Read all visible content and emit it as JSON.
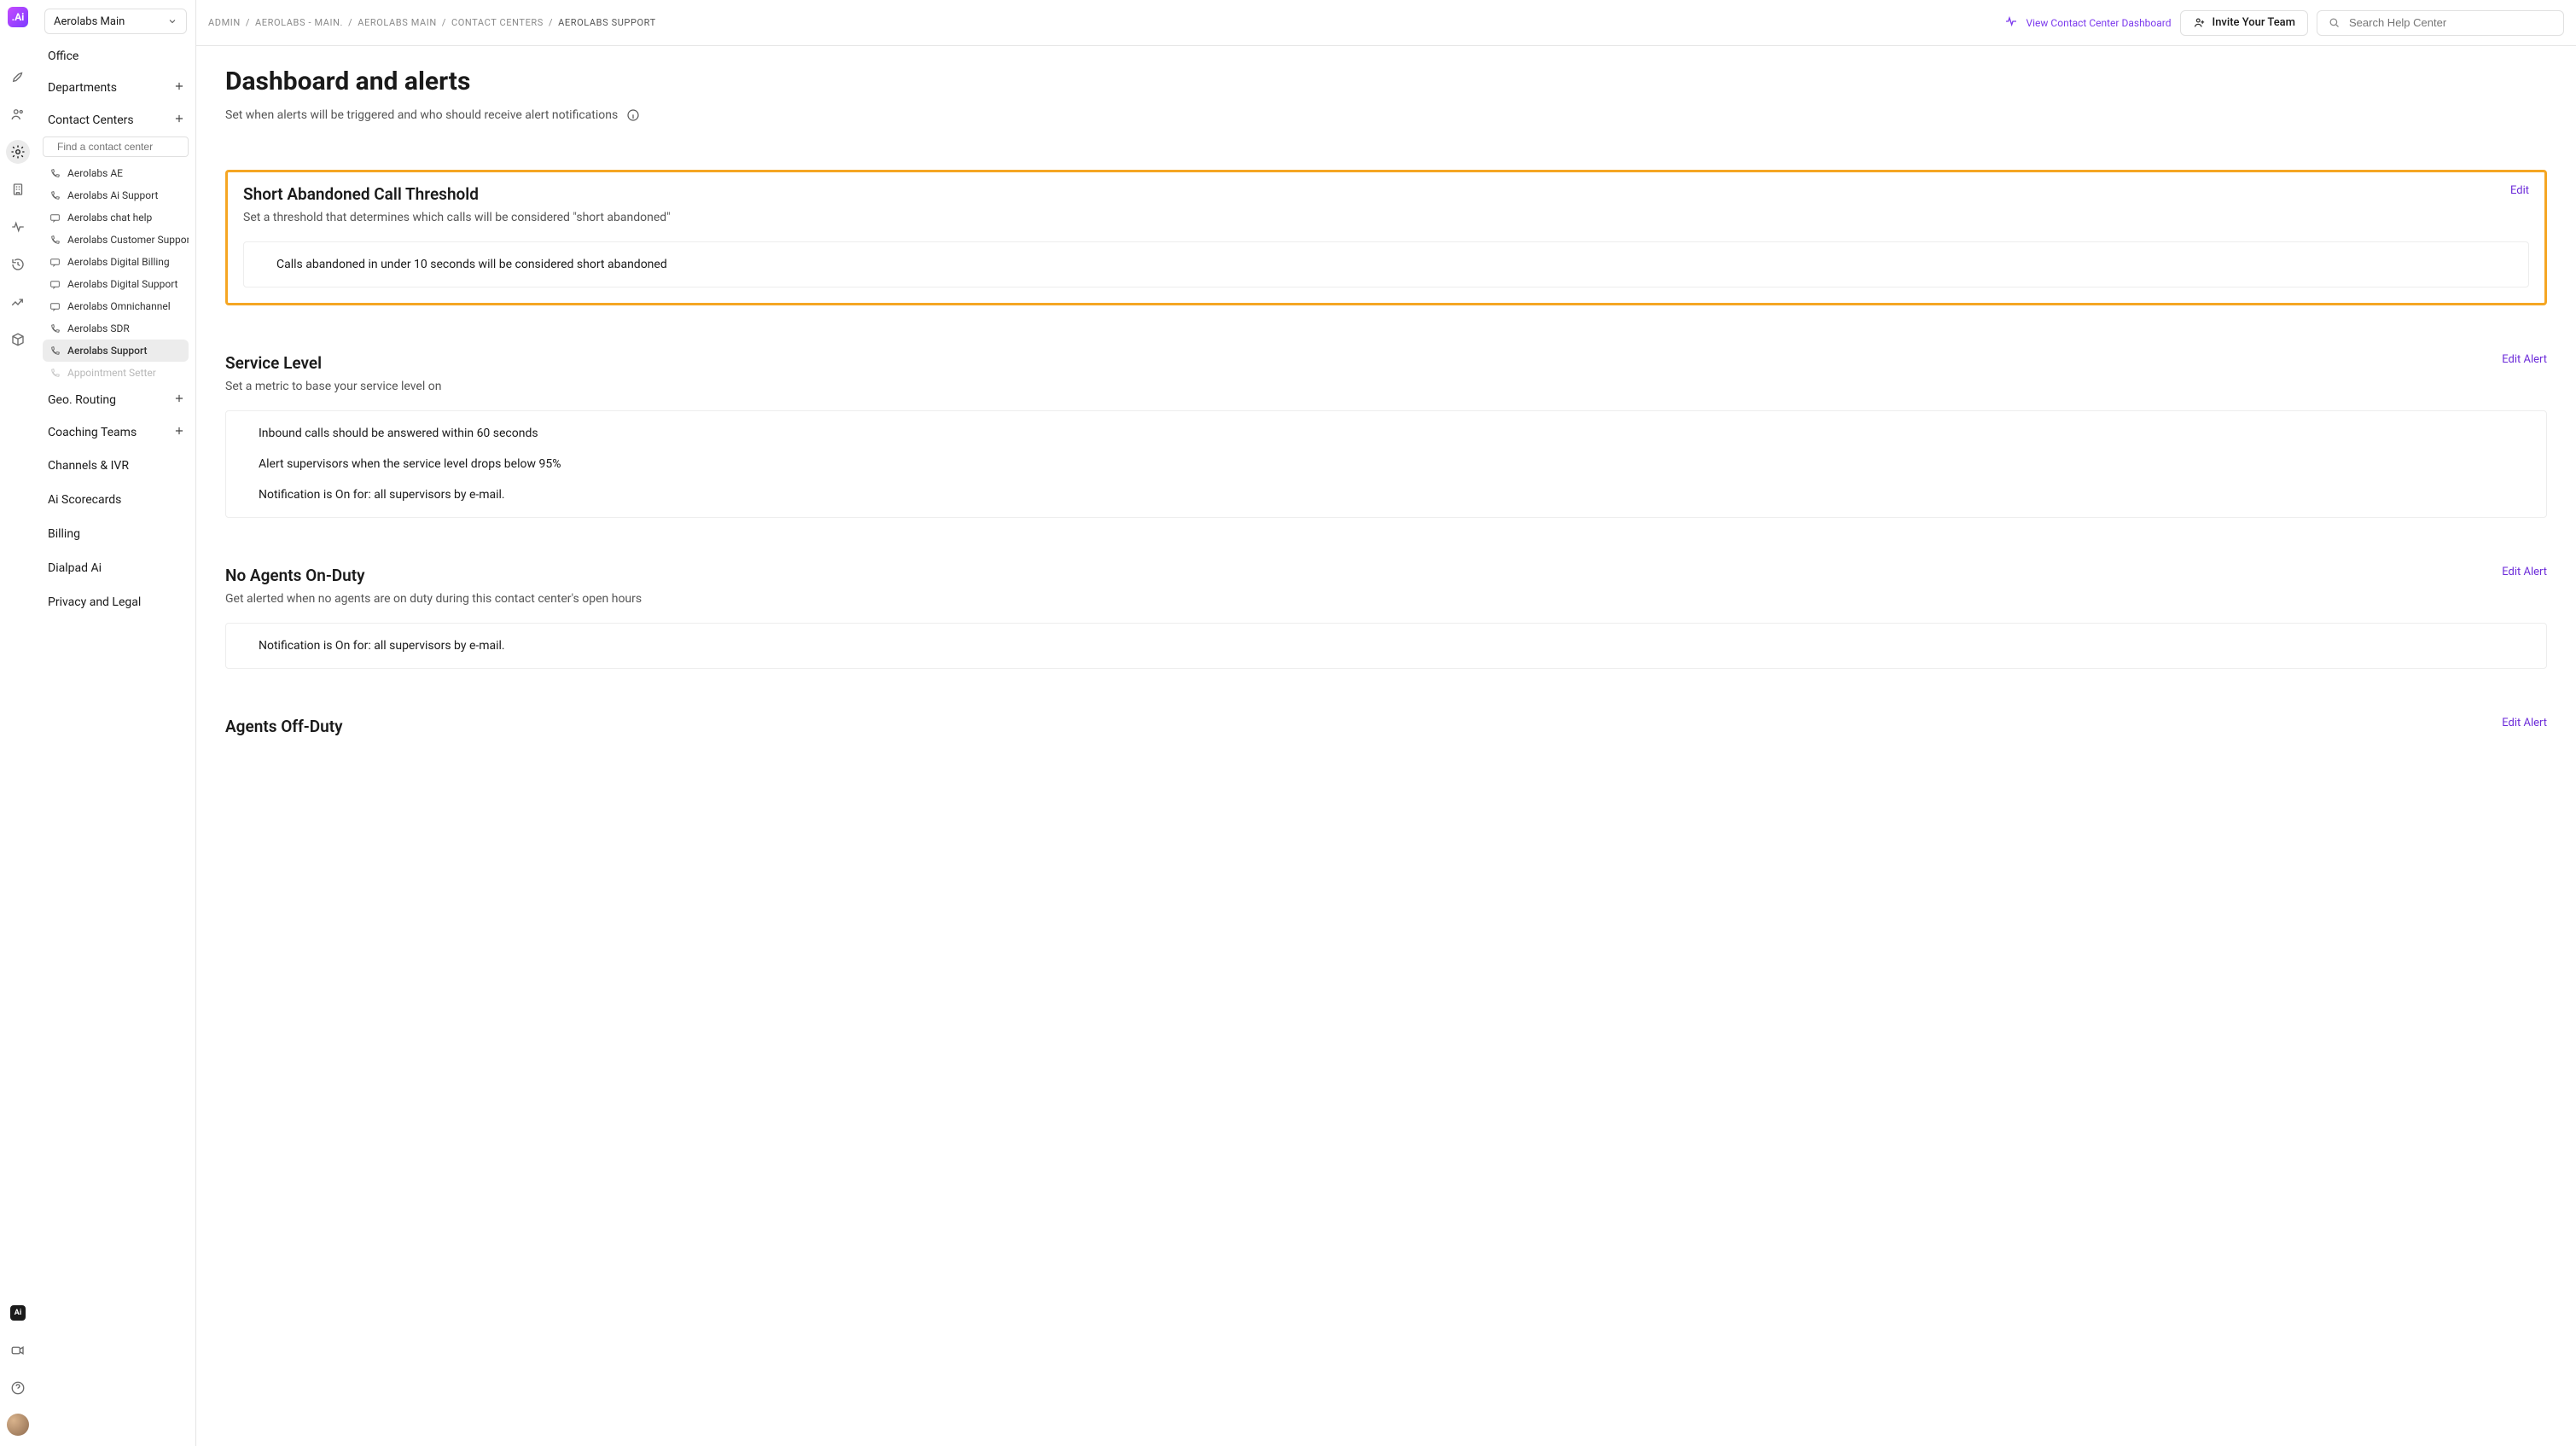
{
  "workspace": {
    "selected": "Aerolabs Main"
  },
  "icon_rail": {
    "logo_label": ".Ai",
    "items": [
      {
        "name": "rocket"
      },
      {
        "name": "contacts"
      },
      {
        "name": "settings",
        "active": true
      },
      {
        "name": "building"
      },
      {
        "name": "activity"
      },
      {
        "name": "history"
      },
      {
        "name": "trend"
      },
      {
        "name": "cube"
      }
    ],
    "bottom_items": [
      {
        "name": "ai-app"
      },
      {
        "name": "video"
      },
      {
        "name": "help"
      }
    ]
  },
  "sidebar": {
    "sections": [
      {
        "label": "Office",
        "has_plus": false
      },
      {
        "label": "Departments",
        "has_plus": true
      },
      {
        "label": "Contact Centers",
        "has_plus": true,
        "is_cc": true
      },
      {
        "label": "Geo. Routing",
        "has_plus": true
      },
      {
        "label": "Coaching Teams",
        "has_plus": true
      },
      {
        "label": "Channels & IVR",
        "has_plus": false
      },
      {
        "label": "Ai Scorecards",
        "has_plus": false
      },
      {
        "label": "Billing",
        "has_plus": false
      },
      {
        "label": "Dialpad Ai",
        "has_plus": false
      },
      {
        "label": "Privacy and Legal",
        "has_plus": false
      }
    ],
    "cc_search_placeholder": "Find a contact center",
    "contact_centers": [
      {
        "label": "Aerolabs AE",
        "kind": "phone"
      },
      {
        "label": "Aerolabs Ai Support",
        "kind": "phone"
      },
      {
        "label": "Aerolabs chat help",
        "kind": "chat"
      },
      {
        "label": "Aerolabs Customer Support",
        "kind": "phone"
      },
      {
        "label": "Aerolabs Digital Billing",
        "kind": "chat"
      },
      {
        "label": "Aerolabs Digital Support",
        "kind": "chat"
      },
      {
        "label": "Aerolabs Omnichannel",
        "kind": "chat"
      },
      {
        "label": "Aerolabs SDR",
        "kind": "phone"
      },
      {
        "label": "Aerolabs Support",
        "kind": "phone",
        "active": true
      },
      {
        "label": "Appointment Setter",
        "kind": "phone",
        "faded": true
      }
    ]
  },
  "header": {
    "breadcrumbs": [
      {
        "label": "ADMIN",
        "link": true
      },
      {
        "label": "AEROLABS - MAIN.",
        "link": true
      },
      {
        "label": "AEROLABS MAIN",
        "link": true
      },
      {
        "label": "CONTACT CENTERS",
        "link": true
      },
      {
        "label": "AEROLABS SUPPORT",
        "link": false
      }
    ],
    "dashboard_link_label": "View Contact Center Dashboard",
    "invite_label": "Invite Your Team",
    "search_placeholder": "Search Help Center"
  },
  "page": {
    "title": "Dashboard and alerts",
    "subtitle": "Set when alerts will be triggered and who should receive alert notifications"
  },
  "alerts": {
    "short_abandoned": {
      "title": "Short Abandoned Call Threshold",
      "desc": "Set a threshold that determines which calls will be considered \"short abandoned\"",
      "body_line": "Calls abandoned in under 10 seconds will be considered short abandoned",
      "edit_label": "Edit",
      "highlight_color": "#f5a623"
    },
    "service_level": {
      "title": "Service Level",
      "desc": "Set a metric to base your service level on",
      "lines": [
        "Inbound calls should be answered within 60 seconds",
        "Alert supervisors when the service level drops below 95%",
        "Notification is On for: all supervisors by e-mail."
      ],
      "edit_label": "Edit Alert"
    },
    "no_agents": {
      "title": "No Agents On-Duty",
      "desc": "Get alerted when no agents are on duty during this contact center's open hours",
      "lines": [
        "Notification is On for: all supervisors by e-mail."
      ],
      "edit_label": "Edit Alert"
    },
    "agents_off": {
      "title": "Agents Off-Duty",
      "edit_label": "Edit Alert"
    }
  },
  "theme": {
    "accent": "#7c3aed",
    "link": "#6c2bd9",
    "border": "#e5e5e5",
    "text_muted": "#8a8a8a"
  }
}
